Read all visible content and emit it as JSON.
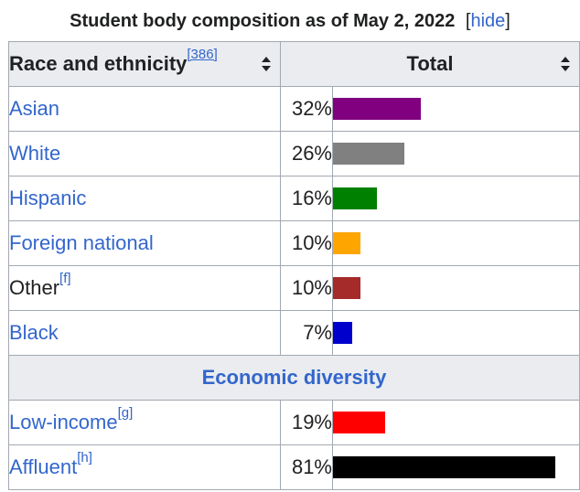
{
  "caption": {
    "title": "Student body composition as of May 2, 2022",
    "hide_open": "[",
    "hide_label": "hide",
    "hide_close": "]"
  },
  "headers": {
    "col1": "Race and ethnicity",
    "col1_ref": "[386]",
    "col2": "Total"
  },
  "rows": [
    {
      "label": "Asian",
      "ref": "",
      "percent": "32%",
      "value": 32,
      "color": "#800080",
      "link": true
    },
    {
      "label": "White",
      "ref": "",
      "percent": "26%",
      "value": 26,
      "color": "#808080",
      "link": true
    },
    {
      "label": "Hispanic",
      "ref": "",
      "percent": "16%",
      "value": 16,
      "color": "#008000",
      "link": true
    },
    {
      "label": "Foreign national",
      "ref": "",
      "percent": "10%",
      "value": 10,
      "color": "#ffa500",
      "link": true
    },
    {
      "label": "Other",
      "ref": "[f]",
      "percent": "10%",
      "value": 10,
      "color": "#a52a2a",
      "link": false
    },
    {
      "label": "Black",
      "ref": "",
      "percent": "7%",
      "value": 7,
      "color": "#0000cd",
      "link": true
    }
  ],
  "section": "Economic diversity",
  "rows2": [
    {
      "label": "Low-income",
      "ref": "[g]",
      "percent": "19%",
      "value": 19,
      "color": "#ff0000",
      "link": true
    },
    {
      "label": "Affluent",
      "ref": "[h]",
      "percent": "81%",
      "value": 81,
      "color": "#000000",
      "link": true
    }
  ]
}
